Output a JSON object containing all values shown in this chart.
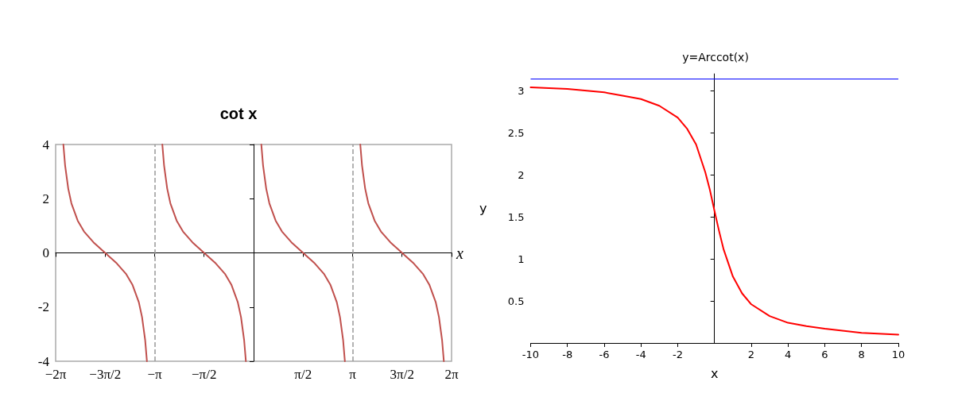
{
  "chart_data": [
    {
      "type": "line",
      "title": "cot x",
      "xlabel": "x",
      "xlim": [
        -6.283,
        6.283
      ],
      "ylim": [
        -4,
        4
      ],
      "xticks": [
        {
          "value": -6.283,
          "label": "−2π"
        },
        {
          "value": -4.712,
          "label": "−3π/2"
        },
        {
          "value": -3.142,
          "label": "−π"
        },
        {
          "value": -1.571,
          "label": "−π/2"
        },
        {
          "value": 1.571,
          "label": "π/2"
        },
        {
          "value": 3.142,
          "label": "π"
        },
        {
          "value": 4.712,
          "label": "3π/2"
        },
        {
          "value": 6.283,
          "label": "2π"
        }
      ],
      "yticks": [
        -4,
        -2,
        0,
        2,
        4
      ],
      "marker": "none",
      "line_style": "solid",
      "grid": false,
      "ref_lines": [
        {
          "axis": "x",
          "value": -3.142,
          "color": "#999999",
          "line_style": "dashed"
        },
        {
          "axis": "x",
          "value": 3.142,
          "color": "#999999",
          "line_style": "dashed"
        }
      ],
      "series": [
        {
          "color": "#c0504d",
          "x": [
            -6.038,
            -5.983,
            -5.883,
            -5.783,
            -5.583,
            -5.383,
            -5.083,
            -4.712,
            -4.341,
            -4.041,
            -3.841,
            -3.641,
            -3.541,
            -3.441,
            -3.386,
            -3.142,
            -2.897,
            -2.842,
            -2.742,
            -2.642,
            -2.442,
            -2.242,
            -1.942,
            -1.571,
            -1.2,
            -0.9,
            -0.7,
            -0.5,
            -0.4,
            -0.3,
            -0.245,
            0,
            0.245,
            0.3,
            0.4,
            0.5,
            0.7,
            0.9,
            1.2,
            1.571,
            1.942,
            2.242,
            2.442,
            2.642,
            2.742,
            2.842,
            2.897,
            3.142,
            3.386,
            3.441,
            3.541,
            3.641,
            3.841,
            4.041,
            4.341,
            4.712,
            5.083,
            5.383,
            5.583,
            5.783,
            5.883,
            5.983,
            6.038
          ],
          "values": [
            4,
            3.23,
            2.37,
            1.83,
            1.19,
            0.79,
            0.39,
            0,
            -0.39,
            -0.79,
            -1.19,
            -1.83,
            -2.37,
            -3.23,
            -4,
            null,
            4,
            3.23,
            2.37,
            1.83,
            1.19,
            0.79,
            0.39,
            0,
            -0.39,
            -0.79,
            -1.19,
            -1.83,
            -2.37,
            -3.23,
            -4,
            null,
            4,
            3.23,
            2.37,
            1.83,
            1.19,
            0.79,
            0.39,
            0,
            -0.39,
            -0.79,
            -1.19,
            -1.83,
            -2.37,
            -3.23,
            -4,
            null,
            4,
            3.23,
            2.37,
            1.83,
            1.19,
            0.79,
            0.39,
            0,
            -0.39,
            -0.79,
            -1.19,
            -1.83,
            -2.37,
            -3.23,
            -4
          ]
        }
      ]
    },
    {
      "type": "line",
      "title": "y=Arccot(x)",
      "xlabel": "x",
      "ylabel": "y",
      "xlim": [
        -10,
        10
      ],
      "ylim": [
        0,
        3.2
      ],
      "xticks": [
        -10,
        -8,
        -6,
        -4,
        -2,
        2,
        4,
        6,
        8,
        10
      ],
      "yticks": [
        0.5,
        1,
        1.5,
        2,
        2.5,
        3
      ],
      "marker": "none",
      "line_style": "solid",
      "grid": false,
      "ref_lines": [
        {
          "axis": "y",
          "value": 3.14,
          "color": "#0000ff",
          "line_style": "solid"
        }
      ],
      "series": [
        {
          "color": "#ff0000",
          "x": [
            -10,
            -8,
            -6,
            -5,
            -4,
            -3,
            -2,
            -1.5,
            -1,
            -0.5,
            -0.25,
            0,
            0.25,
            0.5,
            1,
            1.5,
            2,
            3,
            4,
            5,
            6,
            8,
            10
          ],
          "values": [
            3.04,
            3.02,
            2.98,
            2.94,
            2.9,
            2.82,
            2.68,
            2.55,
            2.36,
            2.03,
            1.82,
            1.57,
            1.33,
            1.11,
            0.79,
            0.59,
            0.46,
            0.32,
            0.24,
            0.2,
            0.17,
            0.12,
            0.1
          ]
        }
      ]
    }
  ]
}
